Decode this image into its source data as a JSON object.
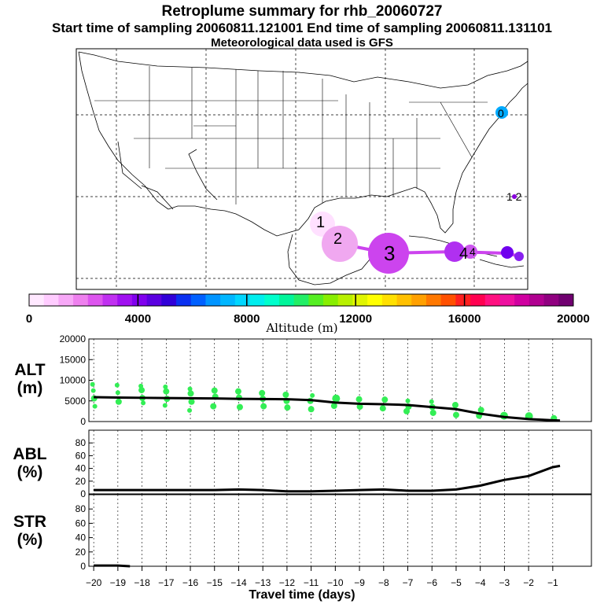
{
  "titles": {
    "main": "Retroplume summary for rhb_20060727",
    "sampling": "Start time of sampling 20060811.121001     End time of sampling 20060811.131101",
    "met": "Meteorological data used is GFS"
  },
  "map": {
    "day_labels": [
      "1",
      "2",
      "3",
      "4",
      "0",
      "1 2"
    ],
    "state_label": "4"
  },
  "colorbar": {
    "label": "Altitude (m)",
    "ticks": [
      "0",
      "4000",
      "8000",
      "12000",
      "16000",
      "20000"
    ],
    "colors": [
      "#ffe8ff",
      "#ffccff",
      "#f7a8f7",
      "#ee80ee",
      "#dd55ee",
      "#c030f0",
      "#a010f0",
      "#8000ee",
      "#5a00e0",
      "#3000d8",
      "#0a30f0",
      "#0060ff",
      "#0094ff",
      "#00b6ff",
      "#00d6ff",
      "#00eeee",
      "#00ffcc",
      "#00f59a",
      "#22ee66",
      "#55ee22",
      "#88ee00",
      "#b8f000",
      "#e0f500",
      "#ffff00",
      "#ffe000",
      "#ffc000",
      "#ffa000",
      "#ff7800",
      "#ff5000",
      "#ff2020",
      "#ff0050",
      "#ff1080",
      "#ee10a0",
      "#d000a0",
      "#b00090",
      "#900080",
      "#700070"
    ]
  },
  "panels": {
    "alt": [
      "ALT",
      "(m)"
    ],
    "abl": [
      "ABL",
      "(%)"
    ],
    "str": [
      "STR",
      "(%)"
    ],
    "xlabel": "Travel time (days)"
  },
  "chart_data": [
    {
      "type": "line",
      "name": "ALT",
      "ylabel": "ALT (m)",
      "ylim": [
        0,
        20000
      ],
      "yticks": [
        "0",
        "5000",
        "10000",
        "15000",
        "20000"
      ],
      "x": [
        -20,
        -19,
        -18,
        -17,
        -16,
        -15,
        -14,
        -13,
        -12,
        -11,
        -10,
        -9,
        -8,
        -7,
        -6,
        -5,
        -4,
        -3,
        -2,
        -1,
        -0.7
      ],
      "series": [
        {
          "name": "mean altitude",
          "values": [
            5900,
            5800,
            5750,
            5700,
            5650,
            5600,
            5500,
            5450,
            5400,
            5200,
            4600,
            4300,
            4200,
            4000,
            3500,
            3000,
            1900,
            1100,
            600,
            300,
            250
          ]
        }
      ],
      "scatter": {
        "x": [
          -20,
          -20,
          -20,
          -20,
          -19,
          -19,
          -19,
          -18,
          -18,
          -18,
          -18,
          -17,
          -17,
          -17,
          -17,
          -16,
          -16,
          -16,
          -16,
          -15,
          -15,
          -15,
          -14,
          -14,
          -14,
          -13,
          -13,
          -13,
          -12,
          -12,
          -12,
          -11,
          -11,
          -11,
          -10,
          -10,
          -9,
          -9,
          -8,
          -8,
          -7,
          -7,
          -7,
          -6,
          -6,
          -6,
          -5,
          -5,
          -4,
          -4,
          -3,
          -2,
          -1
        ],
        "y": [
          9000,
          7500,
          5600,
          3700,
          8800,
          7000,
          4800,
          8600,
          7600,
          5700,
          4500,
          8400,
          7300,
          5500,
          3900,
          7900,
          6800,
          4800,
          2700,
          7500,
          6000,
          3700,
          7300,
          5800,
          3500,
          6900,
          5500,
          3700,
          6500,
          5000,
          3400,
          6300,
          5000,
          3000,
          5600,
          3800,
          5400,
          3600,
          5300,
          3200,
          5000,
          3600,
          2500,
          4800,
          3500,
          2100,
          4000,
          1600,
          2800,
          1400,
          1400,
          1300,
          800
        ],
        "size": [
          2,
          2,
          3,
          2,
          2,
          2,
          3,
          2,
          3,
          3,
          2,
          2,
          3,
          3,
          2,
          2,
          3,
          3,
          2,
          3,
          3,
          3,
          3,
          3,
          3,
          3,
          3,
          3,
          3,
          3,
          3,
          2,
          3,
          3,
          4,
          3,
          3,
          3,
          3,
          3,
          2,
          3,
          3,
          2,
          3,
          3,
          3,
          3,
          3,
          3,
          4,
          4,
          3
        ]
      }
    },
    {
      "type": "line",
      "name": "ABL",
      "ylabel": "ABL (%)",
      "ylim": [
        0,
        100
      ],
      "yticks": [
        "0",
        "20",
        "40",
        "60",
        "80"
      ],
      "x": [
        -20,
        -19,
        -18,
        -17,
        -16,
        -15,
        -14,
        -13,
        -12,
        -11,
        -10,
        -9,
        -8,
        -7,
        -6,
        -5,
        -4,
        -3,
        -2,
        -1,
        -0.7
      ],
      "series": [
        {
          "name": "ABL fraction",
          "values": [
            6,
            6,
            6,
            6,
            6,
            6,
            7,
            6,
            4,
            4,
            5,
            6,
            7,
            5,
            5,
            7,
            13,
            22,
            28,
            42,
            44
          ]
        }
      ]
    },
    {
      "type": "line",
      "name": "STR",
      "ylabel": "STR (%)",
      "ylim": [
        0,
        100
      ],
      "yticks": [
        "0",
        "20",
        "40",
        "60",
        "80"
      ],
      "x": [
        -20,
        -19,
        -18.5
      ],
      "series": [
        {
          "name": "stratosphere fraction",
          "values": [
            1,
            1,
            0
          ]
        }
      ]
    }
  ],
  "xaxis": {
    "ticks": [
      -20,
      -19,
      -18,
      -17,
      -16,
      -15,
      -14,
      -13,
      -12,
      -11,
      -10,
      -9,
      -8,
      -7,
      -6,
      -5,
      -4,
      -3,
      -2,
      -1
    ],
    "tick_labels": [
      "−20",
      "−19",
      "−18",
      "−17",
      "−16",
      "−15",
      "−14",
      "−13",
      "−12",
      "−11",
      "−10",
      "−9",
      "−8",
      "−7",
      "−6",
      "−5",
      "−4",
      "−3",
      "−2",
      "−1"
    ],
    "xlim": [
      -20.2,
      0.6
    ]
  },
  "plume": {
    "days": [
      "1",
      "2",
      "3",
      "4",
      "4",
      "5",
      "6"
    ],
    "altitudes_m": [
      500,
      1500,
      4000,
      4500,
      6000,
      5500,
      6000
    ]
  }
}
